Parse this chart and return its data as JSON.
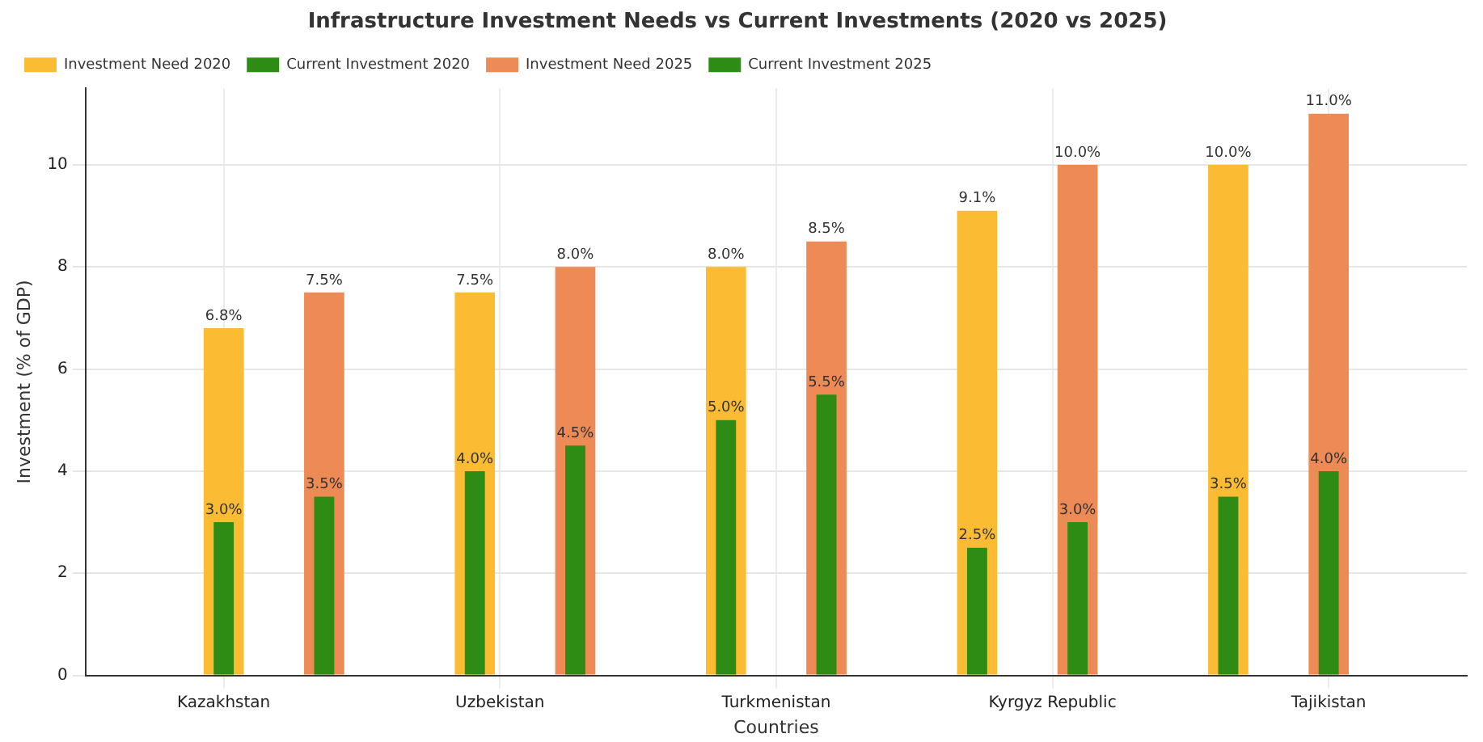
{
  "chart_data": {
    "type": "bar",
    "title": "Infrastructure Investment Needs vs Current Investments (2020 vs 2025)",
    "xlabel": "Countries",
    "ylabel": "Investment (% of GDP)",
    "categories": [
      "Kazakhstan",
      "Uzbekistan",
      "Turkmenistan",
      "Kyrgyz Republic",
      "Tajikistan"
    ],
    "series": [
      {
        "name": "Investment Need 2020",
        "color": "#fbbc33",
        "values": [
          6.8,
          7.5,
          8.0,
          9.1,
          10.0
        ],
        "value_labels": [
          "6.8%",
          "7.5%",
          "8.0%",
          "9.1%",
          "10.0%"
        ]
      },
      {
        "name": "Current Investment 2020",
        "color": "#2e8b14",
        "values": [
          3.0,
          4.0,
          5.0,
          2.5,
          3.5
        ],
        "value_labels": [
          "3.0%",
          "4.0%",
          "5.0%",
          "2.5%",
          "3.5%"
        ]
      },
      {
        "name": "Investment Need 2025",
        "color": "#ee8a55",
        "values": [
          7.5,
          8.0,
          8.5,
          10.0,
          11.0
        ],
        "value_labels": [
          "7.5%",
          "8.0%",
          "8.5%",
          "10.0%",
          "11.0%"
        ]
      },
      {
        "name": "Current Investment 2025",
        "color": "#2e8b14",
        "values": [
          3.5,
          4.5,
          5.5,
          3.0,
          4.0
        ],
        "value_labels": [
          "3.5%",
          "4.5%",
          "5.5%",
          "3.0%",
          "4.0%"
        ]
      }
    ],
    "ylim": [
      0,
      11.5
    ],
    "yticks": [
      0,
      2,
      4,
      6,
      8,
      10
    ],
    "grid": true,
    "legend": "top left"
  }
}
